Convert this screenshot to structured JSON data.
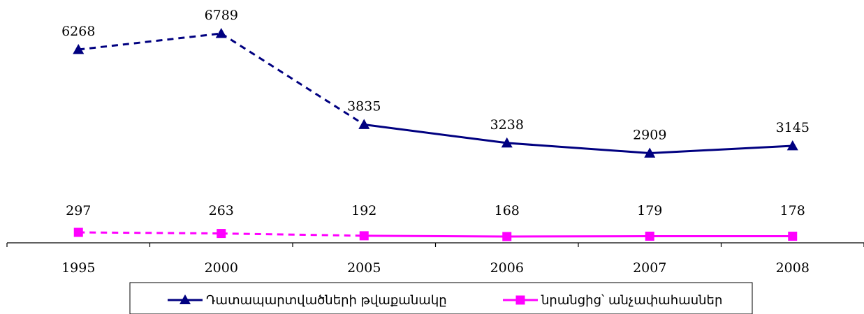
{
  "chart_data": {
    "type": "line",
    "categories": [
      "1995",
      "2000",
      "2005",
      "2006",
      "2007",
      "2008"
    ],
    "series": [
      {
        "name": "Դատապարտվածների թվաքանակը",
        "values": [
          6268,
          6789,
          3835,
          3238,
          2909,
          3145
        ],
        "color": "#000080",
        "marker": "triangle",
        "line_style": [
          "dashed",
          "dashed",
          "solid",
          "solid",
          "solid"
        ]
      },
      {
        "name": "նրանցից՝ անչափահասներ",
        "values": [
          297,
          263,
          192,
          168,
          179,
          178
        ],
        "color": "#ff00ff",
        "marker": "square",
        "line_style": [
          "dashed",
          "dashed",
          "solid",
          "solid",
          "solid"
        ]
      }
    ],
    "ylim": [
      0,
      7000
    ],
    "grid": false,
    "legend_position": "bottom"
  }
}
